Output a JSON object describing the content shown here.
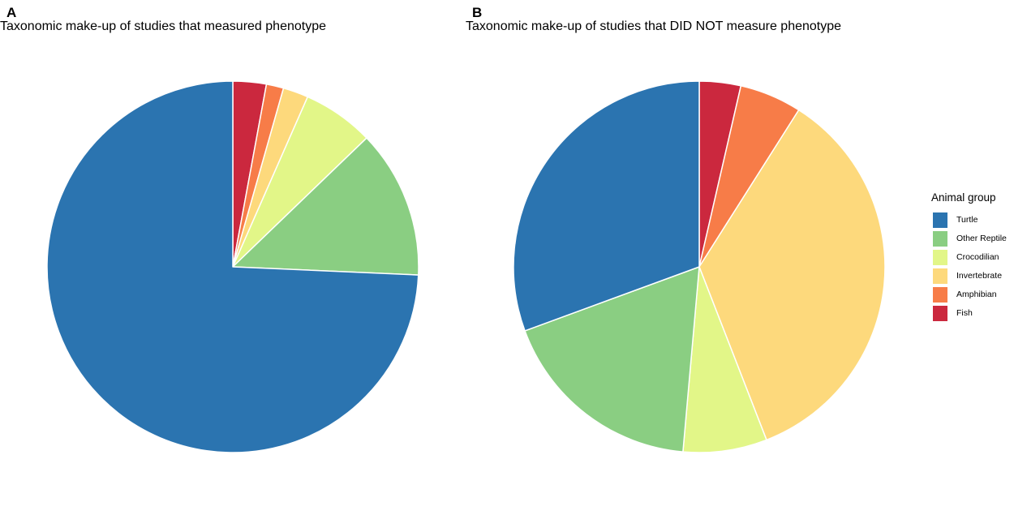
{
  "panels": [
    {
      "letter": "A",
      "title": "Taxonomic make-up of studies that measured phenotype"
    },
    {
      "letter": "B",
      "title": "Taxonomic make-up of studies that DID NOT measure phenotype"
    }
  ],
  "legend": {
    "title": "Animal group",
    "placement": "right",
    "items": [
      {
        "label": "Turtle",
        "color": "#2b74b0"
      },
      {
        "label": "Other Reptile",
        "color": "#8ace82"
      },
      {
        "label": "Crocodilian",
        "color": "#e2f688"
      },
      {
        "label": "Invertebrate",
        "color": "#fdd97c"
      },
      {
        "label": "Amphibian",
        "color": "#f77c48"
      },
      {
        "label": "Fish",
        "color": "#cb283e"
      }
    ]
  },
  "chart_data": [
    {
      "type": "pie",
      "panel": "A",
      "title": "Taxonomic make-up of studies that measured phenotype",
      "start": "12 o'clock",
      "direction": "clockwise",
      "categories": [
        "Fish",
        "Amphibian",
        "Invertebrate",
        "Crocodilian",
        "Other Reptile",
        "Turtle"
      ],
      "values": [
        2.9,
        1.5,
        2.2,
        6.2,
        12.9,
        74.3
      ],
      "colors": [
        "#cb283e",
        "#f77c48",
        "#fdd97c",
        "#e2f688",
        "#8ace82",
        "#2b74b0"
      ]
    },
    {
      "type": "pie",
      "panel": "B",
      "title": "Taxonomic make-up of studies that DID NOT measure phenotype",
      "start": "12 o'clock",
      "direction": "clockwise",
      "categories": [
        "Fish",
        "Amphibian",
        "Invertebrate",
        "Crocodilian",
        "Other Reptile",
        "Turtle"
      ],
      "values": [
        3.6,
        5.4,
        35.1,
        7.3,
        18.0,
        30.6
      ],
      "colors": [
        "#cb283e",
        "#f77c48",
        "#fdd97c",
        "#e2f688",
        "#8ace82",
        "#2b74b0"
      ]
    }
  ]
}
